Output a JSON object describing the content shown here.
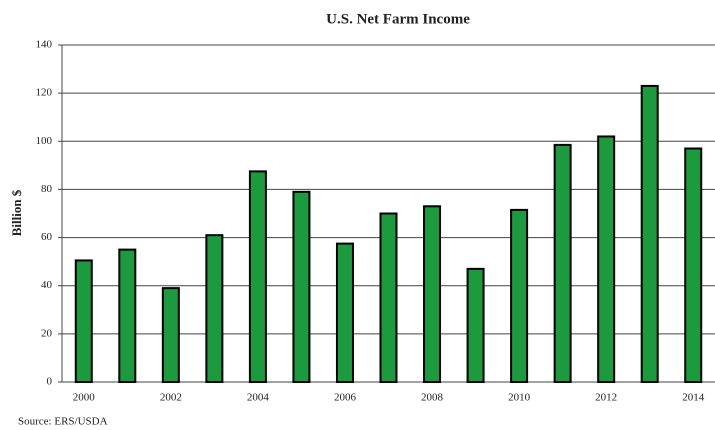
{
  "chart_data": {
    "type": "bar",
    "title": "U.S. Net Farm Income",
    "y_label": "Billion $",
    "source": "Source:  ERS/USDA",
    "categories": [
      "2000",
      null,
      "2002",
      null,
      "2004",
      null,
      "2006",
      null,
      "2008",
      null,
      "2010",
      null,
      "2012",
      null,
      "2014"
    ],
    "values": [
      50.5,
      55,
      39,
      61,
      87.5,
      79,
      57.5,
      70,
      73,
      47,
      71.5,
      98.5,
      102,
      123,
      97
    ],
    "color": "#1c9a3e",
    "ylim": [
      0,
      140
    ],
    "yticks": [
      0,
      20,
      40,
      60,
      80,
      100,
      120,
      140
    ],
    "grid": true
  }
}
